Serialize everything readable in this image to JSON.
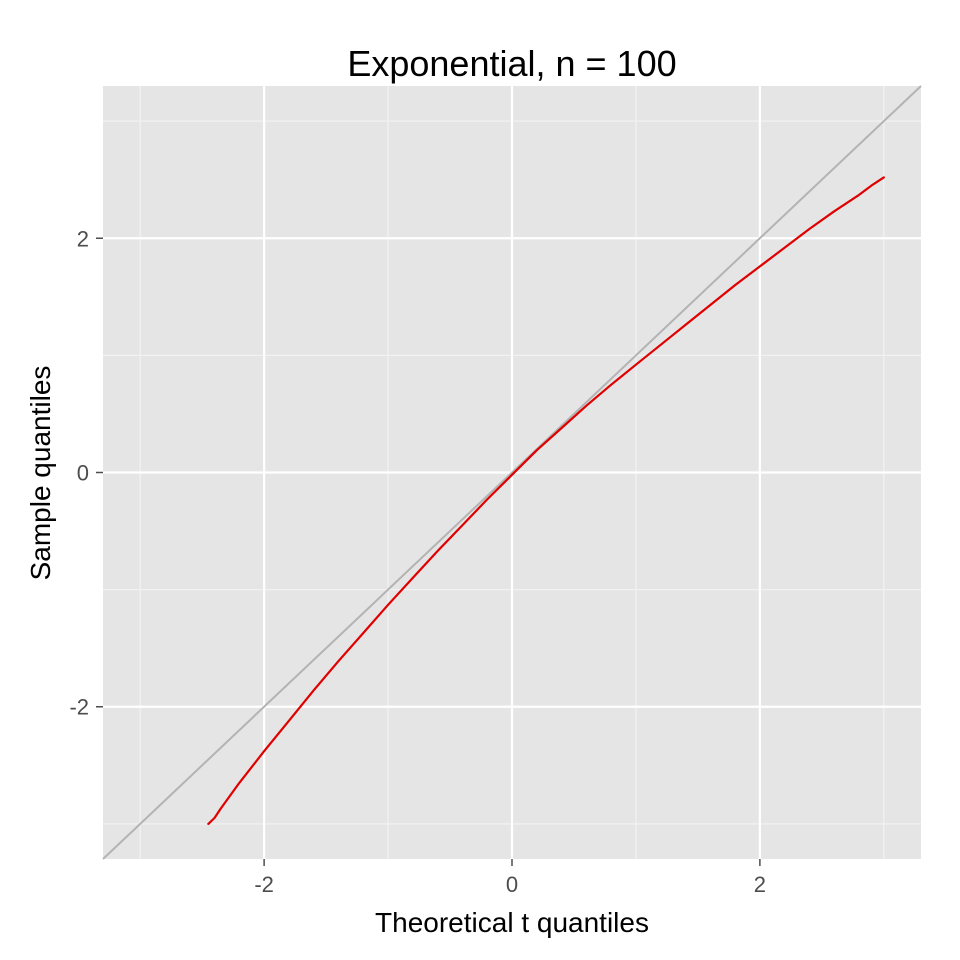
{
  "chart_data": {
    "type": "line",
    "title": "Exponential, n = 100",
    "xlabel": "Theoretical t quantiles",
    "ylabel": "Sample quantiles",
    "xlim": [
      -3.3,
      3.3
    ],
    "ylim": [
      -3.3,
      3.3
    ],
    "x_ticks": [
      -2,
      0,
      2
    ],
    "x_tick_labels": [
      "-2",
      "0",
      "2"
    ],
    "y_ticks": [
      -2,
      0,
      2
    ],
    "y_tick_labels": [
      "-2",
      "0",
      "2"
    ],
    "grid": true,
    "legend": "none",
    "reference_line": {
      "slope": 1,
      "intercept": 0,
      "color": "#b3b3b3"
    },
    "series": [
      {
        "color": "#e00000",
        "x": [
          -2.45,
          -2.4,
          -2.35,
          -2.2,
          -2.0,
          -1.8,
          -1.6,
          -1.4,
          -1.2,
          -1.0,
          -0.8,
          -0.6,
          -0.4,
          -0.2,
          0.0,
          0.2,
          0.4,
          0.6,
          0.8,
          1.0,
          1.2,
          1.4,
          1.6,
          1.8,
          2.0,
          2.2,
          2.4,
          2.6,
          2.8,
          2.9,
          3.0
        ],
        "y": [
          -3.0,
          -2.95,
          -2.87,
          -2.65,
          -2.38,
          -2.12,
          -1.86,
          -1.61,
          -1.37,
          -1.13,
          -0.9,
          -0.67,
          -0.45,
          -0.23,
          -0.02,
          0.19,
          0.38,
          0.57,
          0.75,
          0.92,
          1.09,
          1.26,
          1.43,
          1.6,
          1.76,
          1.92,
          2.08,
          2.23,
          2.37,
          2.45,
          2.52
        ]
      }
    ]
  }
}
